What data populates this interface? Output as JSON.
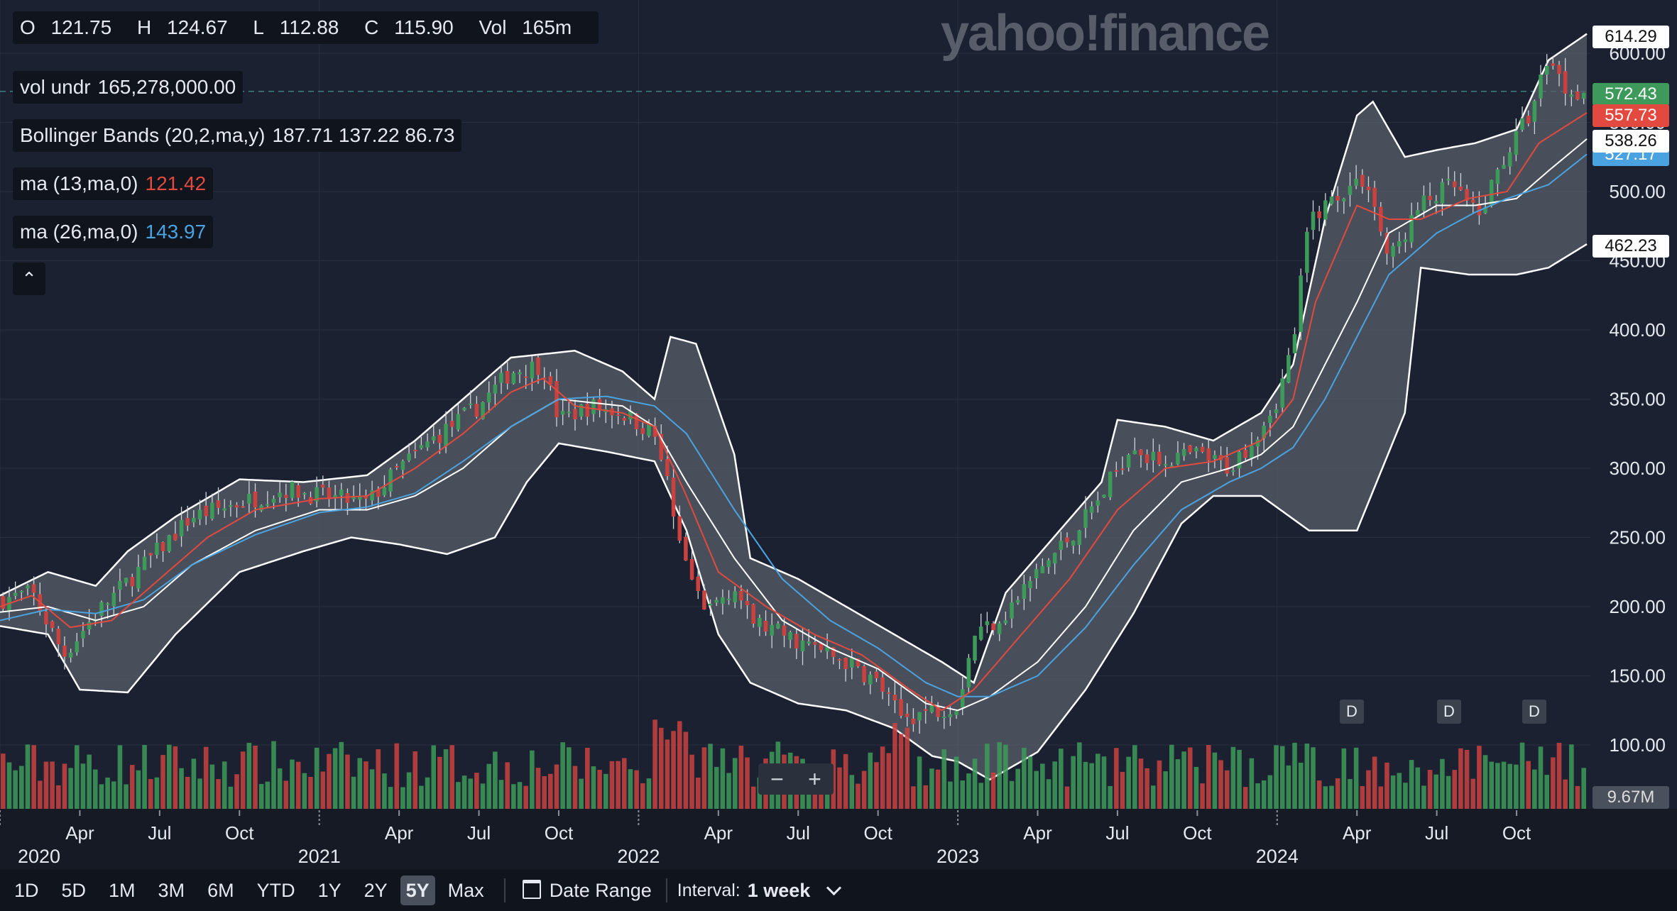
{
  "header": {
    "ohlc": [
      {
        "label": "O",
        "value": "121.75"
      },
      {
        "label": "H",
        "value": "124.67"
      },
      {
        "label": "L",
        "value": "112.88"
      },
      {
        "label": "C",
        "value": "115.90"
      },
      {
        "label": "Vol",
        "value": "165m"
      }
    ],
    "watermark": "yahoo!finance"
  },
  "legends": {
    "volume": {
      "label": "vol undr",
      "value": "165,278,000.00"
    },
    "bollinger": {
      "label": "Bollinger Bands (20,2,ma,y)",
      "value": "187.71 137.22 86.73"
    },
    "ma13": {
      "label": "ma (13,ma,0)",
      "value": "121.42"
    },
    "ma26": {
      "label": "ma (26,ma,0)",
      "value": "143.97"
    },
    "collapse": "⌃"
  },
  "price_tags": {
    "upper": "614.29",
    "last": "572.43",
    "ma13": "557.73",
    "mid": "538.26",
    "ma26": "527.17",
    "lower": "462.23",
    "volume": "9.67M"
  },
  "colors": {
    "up": "#3d9a5a",
    "down": "#c9423f",
    "ma13": "#e24a3f",
    "ma26": "#4aa3e0",
    "band_line": "#ffffff",
    "band_fill": "#5a5f68",
    "grid": "#273040"
  },
  "dividend_markers": [
    "D",
    "D",
    "D"
  ],
  "toolbar": {
    "ranges": [
      "1D",
      "5D",
      "1M",
      "3M",
      "6M",
      "YTD",
      "1Y",
      "2Y",
      "5Y",
      "Max"
    ],
    "active_range": "5Y",
    "date_range": "Date Range",
    "interval_label": "Interval:",
    "interval_value": "1 week"
  },
  "zoom": {
    "minus": "−",
    "plus": "+"
  },
  "chart_data": {
    "type": "line",
    "yaxis": {
      "ticks": [
        100,
        150,
        200,
        250,
        300,
        350,
        400,
        450,
        500,
        550,
        600
      ],
      "ylim": [
        60,
        630
      ]
    },
    "xaxis": {
      "range": [
        2020.0,
        2024.97
      ],
      "month_ticks": [
        {
          "t": 2020.25,
          "label": "Apr"
        },
        {
          "t": 2020.5,
          "label": "Jul"
        },
        {
          "t": 2020.75,
          "label": "Oct"
        },
        {
          "t": 2021.25,
          "label": "Apr"
        },
        {
          "t": 2021.5,
          "label": "Jul"
        },
        {
          "t": 2021.75,
          "label": "Oct"
        },
        {
          "t": 2022.25,
          "label": "Apr"
        },
        {
          "t": 2022.5,
          "label": "Jul"
        },
        {
          "t": 2022.75,
          "label": "Oct"
        },
        {
          "t": 2023.25,
          "label": "Apr"
        },
        {
          "t": 2023.5,
          "label": "Jul"
        },
        {
          "t": 2023.75,
          "label": "Oct"
        },
        {
          "t": 2024.25,
          "label": "Apr"
        },
        {
          "t": 2024.5,
          "label": "Jul"
        },
        {
          "t": 2024.75,
          "label": "Oct"
        }
      ],
      "year_ticks": [
        {
          "t": 2020.0,
          "label": "2020"
        },
        {
          "t": 2021.0,
          "label": "2021"
        },
        {
          "t": 2022.0,
          "label": "2022"
        },
        {
          "t": 2023.0,
          "label": "2023"
        },
        {
          "t": 2024.0,
          "label": "2024"
        }
      ]
    },
    "close_keypoints": [
      [
        2020.0,
        205
      ],
      [
        2020.1,
        210
      ],
      [
        2020.2,
        165
      ],
      [
        2020.3,
        195
      ],
      [
        2020.45,
        230
      ],
      [
        2020.6,
        265
      ],
      [
        2020.75,
        275
      ],
      [
        2020.9,
        285
      ],
      [
        2021.0,
        280
      ],
      [
        2021.15,
        275
      ],
      [
        2021.25,
        300
      ],
      [
        2021.35,
        320
      ],
      [
        2021.5,
        345
      ],
      [
        2021.6,
        370
      ],
      [
        2021.7,
        375
      ],
      [
        2021.75,
        335
      ],
      [
        2021.85,
        345
      ],
      [
        2021.95,
        340
      ],
      [
        2022.05,
        325
      ],
      [
        2022.1,
        280
      ],
      [
        2022.15,
        230
      ],
      [
        2022.2,
        195
      ],
      [
        2022.3,
        215
      ],
      [
        2022.35,
        190
      ],
      [
        2022.45,
        180
      ],
      [
        2022.55,
        170
      ],
      [
        2022.65,
        160
      ],
      [
        2022.75,
        145
      ],
      [
        2022.82,
        120
      ],
      [
        2022.92,
        125
      ],
      [
        2023.0,
        130
      ],
      [
        2023.05,
        180
      ],
      [
        2023.15,
        195
      ],
      [
        2023.25,
        225
      ],
      [
        2023.35,
        250
      ],
      [
        2023.45,
        280
      ],
      [
        2023.55,
        320
      ],
      [
        2023.6,
        305
      ],
      [
        2023.75,
        310
      ],
      [
        2023.85,
        300
      ],
      [
        2023.92,
        320
      ],
      [
        2024.0,
        350
      ],
      [
        2024.05,
        390
      ],
      [
        2024.1,
        480
      ],
      [
        2024.2,
        500
      ],
      [
        2024.28,
        510
      ],
      [
        2024.35,
        450
      ],
      [
        2024.45,
        490
      ],
      [
        2024.55,
        505
      ],
      [
        2024.63,
        480
      ],
      [
        2024.7,
        520
      ],
      [
        2024.8,
        560
      ],
      [
        2024.85,
        600
      ],
      [
        2024.9,
        575
      ],
      [
        2024.97,
        572
      ]
    ],
    "bollinger": {
      "upper_keypoints": [
        [
          2020.0,
          208
        ],
        [
          2020.15,
          225
        ],
        [
          2020.3,
          215
        ],
        [
          2020.4,
          240
        ],
        [
          2020.55,
          265
        ],
        [
          2020.75,
          292
        ],
        [
          2020.95,
          290
        ],
        [
          2021.15,
          295
        ],
        [
          2021.3,
          320
        ],
        [
          2021.45,
          350
        ],
        [
          2021.6,
          380
        ],
        [
          2021.8,
          385
        ],
        [
          2021.95,
          370
        ],
        [
          2022.05,
          350
        ],
        [
          2022.1,
          395
        ],
        [
          2022.18,
          390
        ],
        [
          2022.3,
          310
        ],
        [
          2022.35,
          235
        ],
        [
          2022.5,
          220
        ],
        [
          2022.65,
          200
        ],
        [
          2022.8,
          180
        ],
        [
          2022.95,
          160
        ],
        [
          2023.05,
          145
        ],
        [
          2023.15,
          210
        ],
        [
          2023.3,
          250
        ],
        [
          2023.45,
          290
        ],
        [
          2023.5,
          335
        ],
        [
          2023.65,
          330
        ],
        [
          2023.8,
          320
        ],
        [
          2023.95,
          340
        ],
        [
          2024.05,
          375
        ],
        [
          2024.15,
          480
        ],
        [
          2024.25,
          555
        ],
        [
          2024.3,
          565
        ],
        [
          2024.4,
          525
        ],
        [
          2024.5,
          530
        ],
        [
          2024.62,
          535
        ],
        [
          2024.75,
          545
        ],
        [
          2024.85,
          595
        ],
        [
          2024.97,
          614
        ]
      ],
      "lower_keypoints": [
        [
          2020.0,
          186
        ],
        [
          2020.15,
          180
        ],
        [
          2020.25,
          140
        ],
        [
          2020.4,
          138
        ],
        [
          2020.55,
          180
        ],
        [
          2020.75,
          225
        ],
        [
          2020.95,
          240
        ],
        [
          2021.1,
          250
        ],
        [
          2021.25,
          245
        ],
        [
          2021.4,
          238
        ],
        [
          2021.55,
          250
        ],
        [
          2021.65,
          290
        ],
        [
          2021.75,
          318
        ],
        [
          2021.9,
          312
        ],
        [
          2022.05,
          305
        ],
        [
          2022.15,
          255
        ],
        [
          2022.25,
          180
        ],
        [
          2022.35,
          145
        ],
        [
          2022.5,
          130
        ],
        [
          2022.65,
          125
        ],
        [
          2022.8,
          112
        ],
        [
          2022.92,
          92
        ],
        [
          2023.0,
          88
        ],
        [
          2023.1,
          75
        ],
        [
          2023.25,
          95
        ],
        [
          2023.4,
          140
        ],
        [
          2023.55,
          195
        ],
        [
          2023.7,
          260
        ],
        [
          2023.8,
          280
        ],
        [
          2023.95,
          280
        ],
        [
          2024.1,
          255
        ],
        [
          2024.25,
          255
        ],
        [
          2024.4,
          340
        ],
        [
          2024.45,
          445
        ],
        [
          2024.6,
          440
        ],
        [
          2024.75,
          440
        ],
        [
          2024.85,
          445
        ],
        [
          2024.97,
          462
        ]
      ],
      "mid_keypoints": [
        [
          2020.0,
          196
        ],
        [
          2020.15,
          200
        ],
        [
          2020.3,
          190
        ],
        [
          2020.45,
          200
        ],
        [
          2020.6,
          230
        ],
        [
          2020.8,
          255
        ],
        [
          2021.0,
          270
        ],
        [
          2021.15,
          270
        ],
        [
          2021.3,
          280
        ],
        [
          2021.45,
          300
        ],
        [
          2021.6,
          330
        ],
        [
          2021.75,
          350
        ],
        [
          2021.95,
          345
        ],
        [
          2022.05,
          330
        ],
        [
          2022.15,
          290
        ],
        [
          2022.3,
          235
        ],
        [
          2022.45,
          190
        ],
        [
          2022.6,
          170
        ],
        [
          2022.75,
          155
        ],
        [
          2022.9,
          130
        ],
        [
          2023.0,
          125
        ],
        [
          2023.1,
          135
        ],
        [
          2023.25,
          160
        ],
        [
          2023.4,
          200
        ],
        [
          2023.55,
          255
        ],
        [
          2023.7,
          290
        ],
        [
          2023.85,
          300
        ],
        [
          2023.95,
          310
        ],
        [
          2024.05,
          330
        ],
        [
          2024.15,
          375
        ],
        [
          2024.25,
          420
        ],
        [
          2024.35,
          470
        ],
        [
          2024.5,
          490
        ],
        [
          2024.62,
          490
        ],
        [
          2024.75,
          495
        ],
        [
          2024.85,
          515
        ],
        [
          2024.97,
          538
        ]
      ]
    },
    "ma13_keypoints": [
      [
        2020.0,
        200
      ],
      [
        2020.1,
        208
      ],
      [
        2020.22,
        185
      ],
      [
        2020.35,
        190
      ],
      [
        2020.5,
        220
      ],
      [
        2020.65,
        250
      ],
      [
        2020.8,
        270
      ],
      [
        2021.0,
        278
      ],
      [
        2021.15,
        280
      ],
      [
        2021.3,
        300
      ],
      [
        2021.45,
        325
      ],
      [
        2021.6,
        355
      ],
      [
        2021.7,
        365
      ],
      [
        2021.8,
        345
      ],
      [
        2021.95,
        340
      ],
      [
        2022.05,
        330
      ],
      [
        2022.15,
        280
      ],
      [
        2022.25,
        225
      ],
      [
        2022.4,
        200
      ],
      [
        2022.55,
        180
      ],
      [
        2022.7,
        165
      ],
      [
        2022.85,
        140
      ],
      [
        2022.95,
        125
      ],
      [
        2023.05,
        140
      ],
      [
        2023.2,
        180
      ],
      [
        2023.35,
        220
      ],
      [
        2023.5,
        270
      ],
      [
        2023.65,
        300
      ],
      [
        2023.8,
        305
      ],
      [
        2023.95,
        320
      ],
      [
        2024.05,
        350
      ],
      [
        2024.12,
        420
      ],
      [
        2024.25,
        490
      ],
      [
        2024.35,
        480
      ],
      [
        2024.45,
        480
      ],
      [
        2024.6,
        495
      ],
      [
        2024.72,
        500
      ],
      [
        2024.82,
        535
      ],
      [
        2024.97,
        557
      ]
    ],
    "ma26_keypoints": [
      [
        2020.0,
        190
      ],
      [
        2020.15,
        198
      ],
      [
        2020.3,
        195
      ],
      [
        2020.45,
        205
      ],
      [
        2020.6,
        230
      ],
      [
        2020.8,
        252
      ],
      [
        2021.0,
        268
      ],
      [
        2021.15,
        272
      ],
      [
        2021.3,
        282
      ],
      [
        2021.45,
        305
      ],
      [
        2021.6,
        330
      ],
      [
        2021.75,
        350
      ],
      [
        2021.9,
        352
      ],
      [
        2022.05,
        345
      ],
      [
        2022.15,
        325
      ],
      [
        2022.3,
        270
      ],
      [
        2022.45,
        220
      ],
      [
        2022.6,
        190
      ],
      [
        2022.75,
        170
      ],
      [
        2022.9,
        145
      ],
      [
        2023.0,
        135
      ],
      [
        2023.1,
        135
      ],
      [
        2023.25,
        150
      ],
      [
        2023.4,
        185
      ],
      [
        2023.55,
        230
      ],
      [
        2023.7,
        270
      ],
      [
        2023.85,
        290
      ],
      [
        2023.95,
        300
      ],
      [
        2024.05,
        315
      ],
      [
        2024.15,
        350
      ],
      [
        2024.25,
        395
      ],
      [
        2024.35,
        440
      ],
      [
        2024.5,
        470
      ],
      [
        2024.62,
        485
      ],
      [
        2024.72,
        495
      ],
      [
        2024.85,
        505
      ],
      [
        2024.97,
        527
      ]
    ],
    "volume_max_m": 95
  }
}
